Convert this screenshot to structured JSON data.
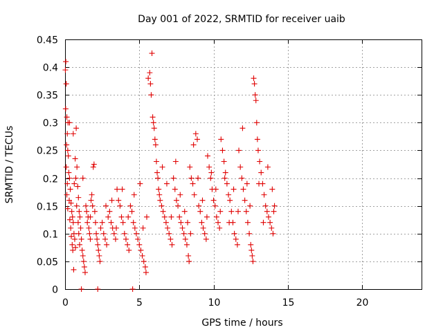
{
  "chart_data": {
    "type": "scatter",
    "title": "Day 001 of 2022, SRMTID for receiver uaib",
    "xlabel": "GPS time / hours",
    "ylabel": "SRMTID / TECUs",
    "xlim": [
      0,
      24
    ],
    "ylim": [
      0,
      0.45
    ],
    "xticks": [
      0,
      5,
      10,
      15,
      20
    ],
    "xtick_labels": [
      "0",
      "5",
      "10",
      "15",
      "20"
    ],
    "yticks": [
      0,
      0.05,
      0.1,
      0.15,
      0.2,
      0.25,
      0.3,
      0.35,
      0.4,
      0.45
    ],
    "ytick_labels": [
      "0",
      "0.05",
      "0.1",
      "0.15",
      "0.2",
      "0.25",
      "0.3",
      "0.35",
      "0.4",
      "0.45"
    ],
    "grid": true,
    "marker": "+",
    "color": "#e00000",
    "series": [
      {
        "name": "SRMTID",
        "points": [
          [
            0.02,
            0.395
          ],
          [
            0.05,
            0.41
          ],
          [
            0.08,
            0.37
          ],
          [
            0.04,
            0.325
          ],
          [
            0.12,
            0.31
          ],
          [
            0.2,
            0.3
          ],
          [
            0.15,
            0.28
          ],
          [
            0.1,
            0.26
          ],
          [
            0.18,
            0.25
          ],
          [
            0.22,
            0.24
          ],
          [
            0.08,
            0.22
          ],
          [
            0.25,
            0.21
          ],
          [
            0.3,
            0.2
          ],
          [
            0.15,
            0.19
          ],
          [
            0.35,
            0.18
          ],
          [
            0.12,
            0.17
          ],
          [
            0.28,
            0.16
          ],
          [
            0.4,
            0.155
          ],
          [
            0.18,
            0.145
          ],
          [
            0.45,
            0.14
          ],
          [
            0.5,
            0.13
          ],
          [
            0.32,
            0.125
          ],
          [
            0.55,
            0.12
          ],
          [
            0.38,
            0.11
          ],
          [
            0.6,
            0.1
          ],
          [
            0.42,
            0.095
          ],
          [
            0.65,
            0.09
          ],
          [
            0.48,
            0.08
          ],
          [
            0.7,
            0.075
          ],
          [
            0.52,
            0.07
          ],
          [
            0.58,
            0.035
          ],
          [
            0.62,
            0.19
          ],
          [
            0.75,
            0.29
          ],
          [
            0.68,
            0.235
          ],
          [
            0.8,
            0.22
          ],
          [
            0.72,
            0.2
          ],
          [
            0.85,
            0.185
          ],
          [
            0.9,
            0.165
          ],
          [
            0.78,
            0.15
          ],
          [
            0.95,
            0.14
          ],
          [
            1.0,
            0.13
          ],
          [
            0.88,
            0.12
          ],
          [
            1.05,
            0.11
          ],
          [
            0.92,
            0.1
          ],
          [
            1.1,
            0.09
          ],
          [
            0.98,
            0.08
          ],
          [
            1.15,
            0.07
          ],
          [
            1.2,
            0.06
          ],
          [
            1.25,
            0.05
          ],
          [
            1.3,
            0.04
          ],
          [
            1.35,
            0.03
          ],
          [
            1.4,
            0.15
          ],
          [
            1.45,
            0.14
          ],
          [
            1.5,
            0.12
          ],
          [
            1.55,
            0.13
          ],
          [
            1.6,
            0.11
          ],
          [
            1.65,
            0.1
          ],
          [
            1.7,
            0.09
          ],
          [
            1.75,
            0.16
          ],
          [
            1.8,
            0.17
          ],
          [
            1.85,
            0.15
          ],
          [
            1.9,
            0.22
          ],
          [
            1.95,
            0.225
          ],
          [
            2.0,
            0.14
          ],
          [
            2.05,
            0.12
          ],
          [
            2.1,
            0.1
          ],
          [
            2.15,
            0.09
          ],
          [
            2.2,
            0.08
          ],
          [
            2.25,
            0.07
          ],
          [
            2.3,
            0.06
          ],
          [
            2.35,
            0.05
          ],
          [
            2.4,
            0.11
          ],
          [
            2.5,
            0.12
          ],
          [
            2.6,
            0.1
          ],
          [
            2.7,
            0.09
          ],
          [
            2.8,
            0.08
          ],
          [
            2.9,
            0.13
          ],
          [
            3.0,
            0.14
          ],
          [
            3.1,
            0.12
          ],
          [
            3.2,
            0.11
          ],
          [
            3.3,
            0.1
          ],
          [
            3.4,
            0.09
          ],
          [
            3.5,
            0.18
          ],
          [
            3.6,
            0.16
          ],
          [
            3.7,
            0.15
          ],
          [
            3.8,
            0.13
          ],
          [
            3.9,
            0.12
          ],
          [
            4.0,
            0.1
          ],
          [
            4.1,
            0.09
          ],
          [
            4.2,
            0.08
          ],
          [
            4.3,
            0.07
          ],
          [
            4.4,
            0.15
          ],
          [
            4.5,
            0.14
          ],
          [
            4.6,
            0.12
          ],
          [
            4.7,
            0.11
          ],
          [
            4.8,
            0.1
          ],
          [
            4.9,
            0.09
          ],
          [
            5.0,
            0.08
          ],
          [
            5.1,
            0.07
          ],
          [
            5.2,
            0.06
          ],
          [
            5.3,
            0.05
          ],
          [
            5.4,
            0.04
          ],
          [
            5.45,
            0.03
          ],
          [
            5.5,
            0.13
          ],
          [
            5.6,
            0.38
          ],
          [
            5.7,
            0.39
          ],
          [
            5.75,
            0.37
          ],
          [
            5.8,
            0.35
          ],
          [
            5.85,
            0.425
          ],
          [
            5.9,
            0.31
          ],
          [
            5.95,
            0.3
          ],
          [
            6.0,
            0.29
          ],
          [
            6.05,
            0.27
          ],
          [
            6.1,
            0.26
          ],
          [
            6.15,
            0.23
          ],
          [
            6.2,
            0.21
          ],
          [
            6.25,
            0.2
          ],
          [
            6.3,
            0.18
          ],
          [
            6.35,
            0.17
          ],
          [
            6.4,
            0.16
          ],
          [
            6.5,
            0.15
          ],
          [
            6.6,
            0.14
          ],
          [
            6.7,
            0.13
          ],
          [
            6.8,
            0.12
          ],
          [
            6.9,
            0.11
          ],
          [
            7.0,
            0.1
          ],
          [
            7.1,
            0.09
          ],
          [
            7.2,
            0.08
          ],
          [
            7.3,
            0.2
          ],
          [
            7.4,
            0.18
          ],
          [
            7.5,
            0.16
          ],
          [
            7.6,
            0.15
          ],
          [
            7.7,
            0.13
          ],
          [
            7.8,
            0.12
          ],
          [
            7.9,
            0.11
          ],
          [
            8.0,
            0.1
          ],
          [
            8.1,
            0.09
          ],
          [
            8.2,
            0.08
          ],
          [
            8.3,
            0.06
          ],
          [
            8.35,
            0.05
          ],
          [
            8.4,
            0.22
          ],
          [
            8.5,
            0.2
          ],
          [
            8.6,
            0.19
          ],
          [
            8.7,
            0.17
          ],
          [
            8.8,
            0.28
          ],
          [
            8.9,
            0.27
          ],
          [
            9.0,
            0.15
          ],
          [
            9.1,
            0.14
          ],
          [
            9.2,
            0.12
          ],
          [
            9.3,
            0.11
          ],
          [
            9.4,
            0.1
          ],
          [
            9.5,
            0.09
          ],
          [
            9.6,
            0.24
          ],
          [
            9.7,
            0.22
          ],
          [
            9.8,
            0.2
          ],
          [
            9.9,
            0.18
          ],
          [
            10.0,
            0.16
          ],
          [
            10.1,
            0.15
          ],
          [
            10.2,
            0.13
          ],
          [
            10.3,
            0.12
          ],
          [
            10.4,
            0.11
          ],
          [
            10.5,
            0.27
          ],
          [
            10.6,
            0.25
          ],
          [
            10.7,
            0.23
          ],
          [
            10.8,
            0.21
          ],
          [
            10.9,
            0.19
          ],
          [
            11.0,
            0.17
          ],
          [
            11.1,
            0.16
          ],
          [
            11.2,
            0.14
          ],
          [
            11.3,
            0.12
          ],
          [
            11.4,
            0.1
          ],
          [
            11.5,
            0.09
          ],
          [
            11.6,
            0.08
          ],
          [
            11.7,
            0.25
          ],
          [
            11.8,
            0.22
          ],
          [
            11.9,
            0.2
          ],
          [
            12.0,
            0.18
          ],
          [
            12.1,
            0.16
          ],
          [
            12.2,
            0.14
          ],
          [
            12.3,
            0.12
          ],
          [
            12.4,
            0.1
          ],
          [
            12.5,
            0.08
          ],
          [
            12.55,
            0.07
          ],
          [
            12.6,
            0.06
          ],
          [
            12.65,
            0.05
          ],
          [
            12.7,
            0.38
          ],
          [
            12.75,
            0.37
          ],
          [
            12.8,
            0.35
          ],
          [
            12.85,
            0.34
          ],
          [
            12.9,
            0.3
          ],
          [
            12.95,
            0.27
          ],
          [
            13.0,
            0.25
          ],
          [
            13.1,
            0.23
          ],
          [
            13.2,
            0.21
          ],
          [
            13.3,
            0.19
          ],
          [
            13.4,
            0.17
          ],
          [
            13.5,
            0.15
          ],
          [
            13.6,
            0.14
          ],
          [
            13.7,
            0.13
          ],
          [
            13.8,
            0.12
          ],
          [
            13.9,
            0.11
          ],
          [
            14.0,
            0.1
          ],
          [
            14.05,
            0.14
          ],
          [
            14.1,
            0.15
          ],
          [
            0.3,
            0.3
          ],
          [
            0.55,
            0.28
          ],
          [
            1.2,
            0.2
          ],
          [
            1.7,
            0.13
          ],
          [
            2.75,
            0.15
          ],
          [
            3.15,
            0.16
          ],
          [
            3.45,
            0.11
          ],
          [
            3.85,
            0.18
          ],
          [
            4.25,
            0.13
          ],
          [
            4.65,
            0.17
          ],
          [
            5.05,
            0.19
          ],
          [
            5.25,
            0.11
          ],
          [
            6.55,
            0.22
          ],
          [
            6.85,
            0.19
          ],
          [
            7.15,
            0.13
          ],
          [
            7.45,
            0.23
          ],
          [
            7.75,
            0.17
          ],
          [
            8.05,
            0.14
          ],
          [
            8.25,
            0.12
          ],
          [
            8.45,
            0.1
          ],
          [
            8.65,
            0.26
          ],
          [
            8.95,
            0.2
          ],
          [
            9.25,
            0.16
          ],
          [
            9.55,
            0.13
          ],
          [
            9.85,
            0.21
          ],
          [
            10.15,
            0.18
          ],
          [
            10.45,
            0.14
          ],
          [
            10.75,
            0.2
          ],
          [
            11.05,
            0.12
          ],
          [
            11.35,
            0.18
          ],
          [
            11.65,
            0.14
          ],
          [
            11.95,
            0.29
          ],
          [
            12.25,
            0.19
          ],
          [
            12.45,
            0.15
          ],
          [
            13.05,
            0.19
          ],
          [
            13.35,
            0.12
          ],
          [
            13.65,
            0.22
          ],
          [
            13.95,
            0.18
          ],
          [
            1.1,
            0.0
          ],
          [
            2.2,
            0.0
          ],
          [
            4.55,
            0.0
          ]
        ]
      }
    ]
  }
}
